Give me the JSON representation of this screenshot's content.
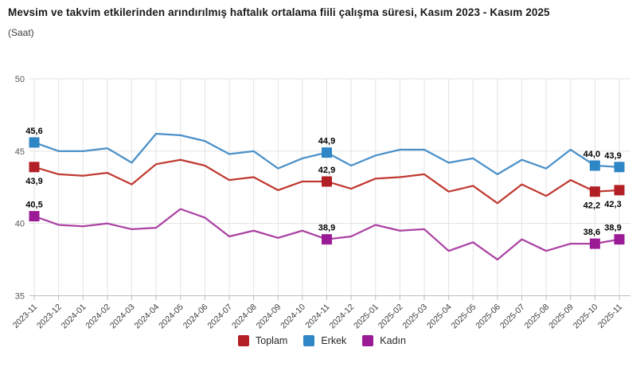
{
  "chart_data": {
    "type": "line",
    "title": "Mevsim ve takvim etkilerinden arındırılmış haftalık ortalama fiili çalışma süresi, Kasım 2023 - Kasım 2025",
    "subtitle": "(Saat)",
    "xlabel": "",
    "ylabel": "",
    "ylim": [
      35,
      50
    ],
    "yticks": [
      35,
      40,
      45,
      50
    ],
    "grid": true,
    "legend_position": "bottom",
    "categories": [
      "2023-11",
      "2023-12",
      "2024-01",
      "2024-02",
      "2024-03",
      "2024-04",
      "2024-05",
      "2024-06",
      "2024-07",
      "2024-08",
      "2024-09",
      "2024-10",
      "2024-11",
      "2024-12",
      "2025-01",
      "2025-02",
      "2025-03",
      "2025-04",
      "2025-05",
      "2025-06",
      "2025-07",
      "2025-08",
      "2025-09",
      "2025-10",
      "2025-11"
    ],
    "series": [
      {
        "name": "Toplam",
        "line_color": "#c03a31",
        "marker_color": "#b22025",
        "values": [
          43.9,
          43.4,
          43.3,
          43.5,
          42.7,
          44.1,
          44.4,
          44.0,
          43.0,
          43.2,
          42.3,
          42.9,
          42.9,
          42.4,
          43.1,
          43.2,
          43.4,
          42.2,
          42.6,
          41.4,
          42.7,
          41.9,
          43.0,
          42.2,
          42.3
        ],
        "annotations": [
          {
            "index": 0,
            "label": "43,9",
            "position": "below"
          },
          {
            "index": 12,
            "label": "42,9",
            "position": "above"
          },
          {
            "index": 23,
            "label": "42,2",
            "position": "below"
          },
          {
            "index": 24,
            "label": "42,3",
            "position": "below"
          }
        ]
      },
      {
        "name": "Erkek",
        "line_color": "#4a90c9",
        "marker_color": "#2f86c5",
        "values": [
          45.6,
          45.0,
          45.0,
          45.2,
          44.2,
          46.2,
          46.1,
          45.7,
          44.8,
          45.0,
          43.8,
          44.5,
          44.9,
          44.0,
          44.7,
          45.1,
          45.1,
          44.2,
          44.5,
          43.4,
          44.4,
          43.8,
          45.1,
          44.0,
          43.9
        ],
        "annotations": [
          {
            "index": 0,
            "label": "45,6",
            "position": "above"
          },
          {
            "index": 12,
            "label": "44,9",
            "position": "above"
          },
          {
            "index": 23,
            "label": "44,0",
            "position": "above"
          },
          {
            "index": 24,
            "label": "43,9",
            "position": "above"
          }
        ]
      },
      {
        "name": "Kadın",
        "line_color": "#ab42a3",
        "marker_color": "#9b1a95",
        "values": [
          40.5,
          39.9,
          39.8,
          40.0,
          39.6,
          39.7,
          41.0,
          40.4,
          39.1,
          39.5,
          39.0,
          39.5,
          38.9,
          39.1,
          39.9,
          39.5,
          39.6,
          38.1,
          38.7,
          37.5,
          38.9,
          38.1,
          38.6,
          38.6,
          38.9
        ],
        "annotations": [
          {
            "index": 0,
            "label": "40,5",
            "position": "above"
          },
          {
            "index": 12,
            "label": "38,9",
            "position": "above"
          },
          {
            "index": 23,
            "label": "38,6",
            "position": "above"
          },
          {
            "index": 24,
            "label": "38,9",
            "position": "above"
          }
        ]
      }
    ]
  }
}
